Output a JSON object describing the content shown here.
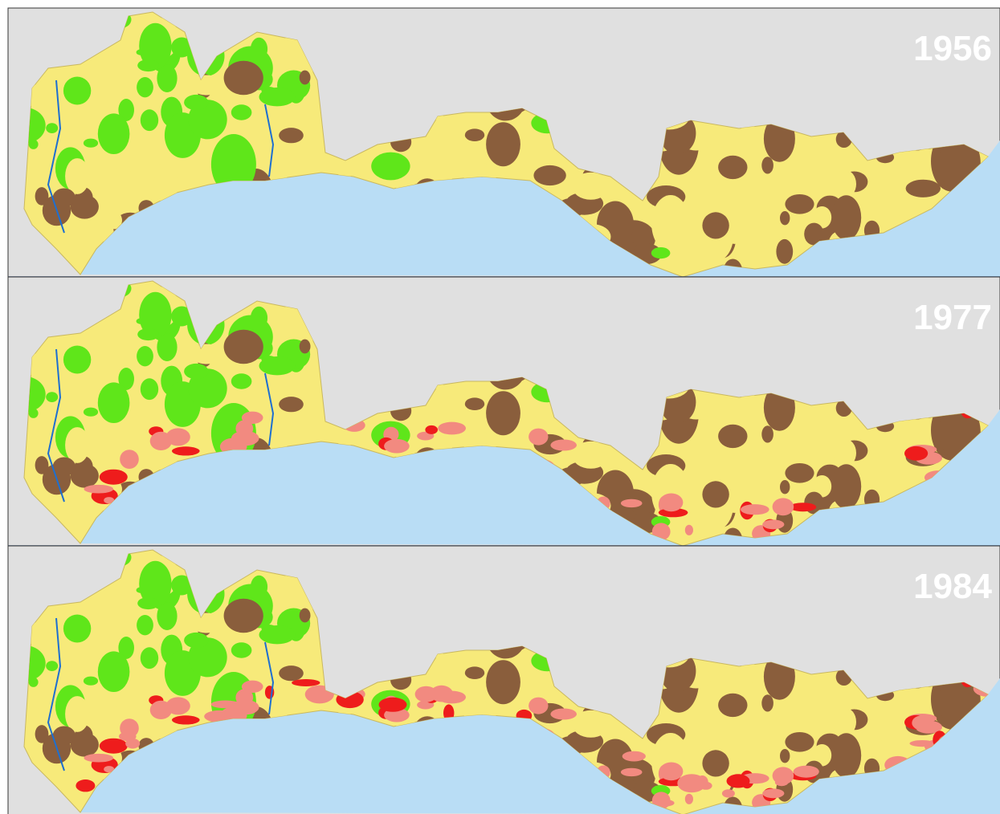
{
  "panels": [
    {
      "label": "1956"
    },
    {
      "label": "1977"
    },
    {
      "label": "1984"
    }
  ]
}
